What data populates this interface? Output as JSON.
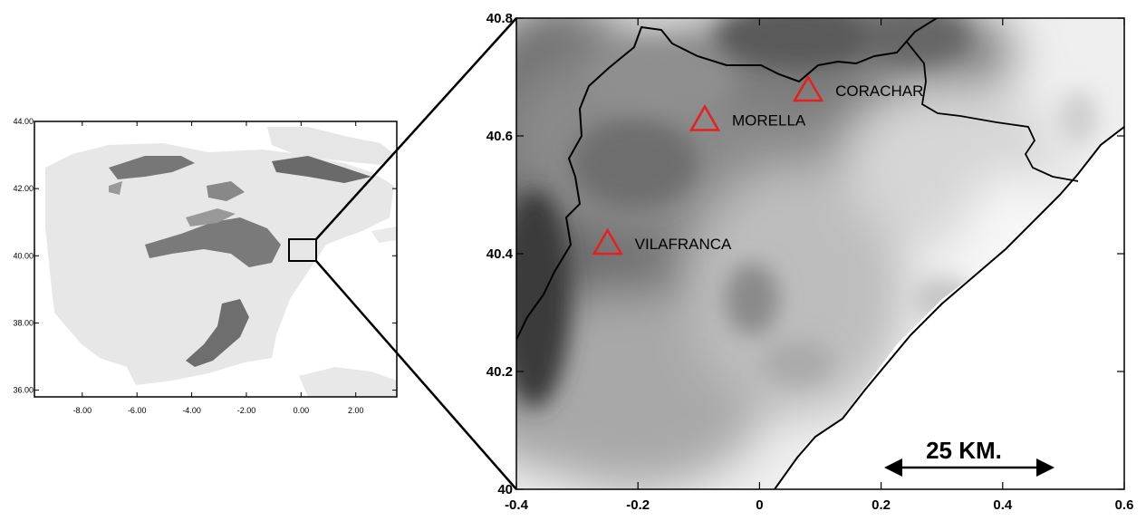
{
  "overview_map": {
    "x_ticks": [
      "-8.00",
      "-6.00",
      "-4.00",
      "-2.00",
      "0.00",
      "2.00"
    ],
    "y_ticks": [
      "44.00",
      "42.00",
      "40.00",
      "38.00",
      "36.00"
    ]
  },
  "detail_map": {
    "x_ticks": [
      "-0.4",
      "-0.2",
      "0",
      "0.2",
      "0.4",
      "0.6"
    ],
    "y_ticks": [
      "40.8",
      "40.6",
      "40.4",
      "40.2",
      "40"
    ],
    "stations": [
      {
        "name": "CORACHAR",
        "lon": 0.08,
        "lat": 40.68
      },
      {
        "name": "MORELLA",
        "lon": -0.09,
        "lat": 40.63
      },
      {
        "name": "VILAFRANCA",
        "lon": -0.25,
        "lat": 40.42
      }
    ],
    "scale_bar": {
      "label": "25 KM."
    }
  },
  "colors": {
    "station_marker": "#e8201c",
    "border": "#000000"
  }
}
